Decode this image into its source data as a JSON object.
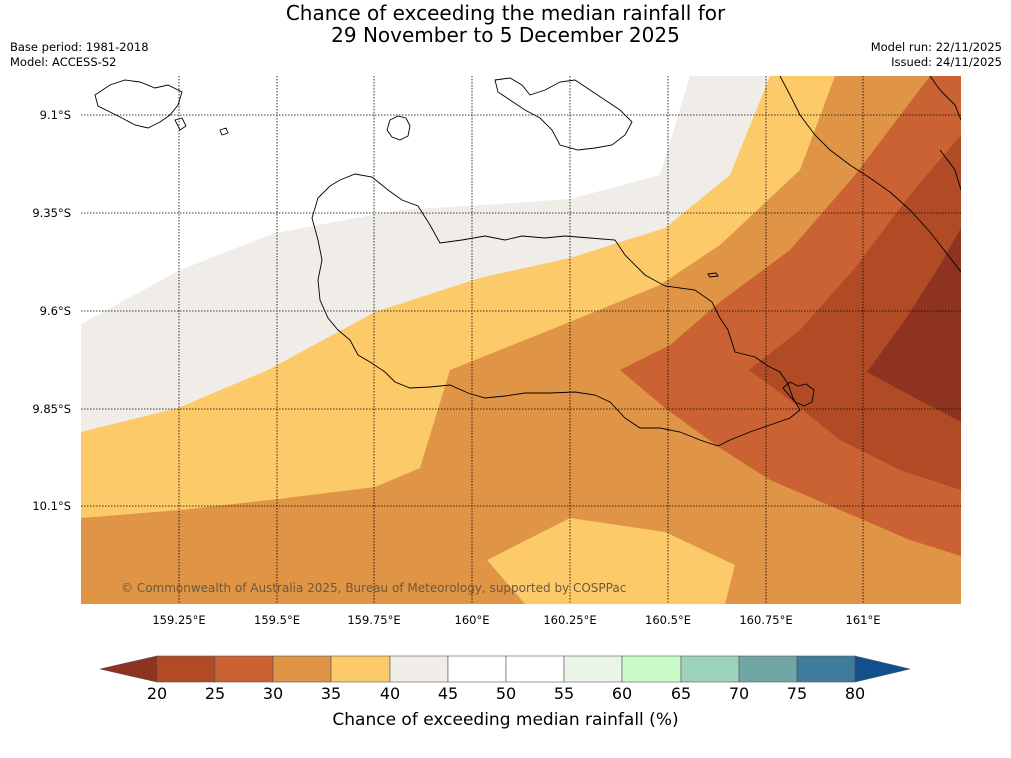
{
  "title_line1": "Chance of exceeding the median rainfall for",
  "title_line2": "29 November to 5 December 2025",
  "base_period": "Base period: 1981-2018",
  "model": "Model: ACCESS-S2",
  "model_run": "Model run: 22/11/2025",
  "issued": "Issued: 24/11/2025",
  "copyright": "© Commonwealth of Australia 2025, Bureau of Meteorology, supported by COSPPac",
  "lat_labels": [
    "9.1°S",
    "9.35°S",
    "9.6°S",
    "9.85°S",
    "10.1°S"
  ],
  "lon_labels": [
    "159.25°E",
    "159.5°E",
    "159.75°E",
    "160°E",
    "160.25°E",
    "160.5°E",
    "160.75°E",
    "161°E"
  ],
  "colorbar": {
    "label": "Chance of exceeding median rainfall (%)",
    "ticks": [
      "20",
      "25",
      "30",
      "35",
      "40",
      "45",
      "50",
      "55",
      "60",
      "65",
      "70",
      "75",
      "80"
    ],
    "colors": {
      "below_20": "#8e3320",
      "c20_25": "#b04b26",
      "c25_30": "#cb6233",
      "c30_35": "#e09445",
      "c35_40": "#fcca68",
      "c40_45": "#f0ece7",
      "c45_50": "#ffffff",
      "c50_55": "#ffffff",
      "c55_60": "#eaf5e8",
      "c60_65": "#c8fbc8",
      "c65_70": "#9dd3bd",
      "c70_75": "#70a6a6",
      "c75_80": "#3f7b9c",
      "above_80": "#124f8d"
    }
  }
}
